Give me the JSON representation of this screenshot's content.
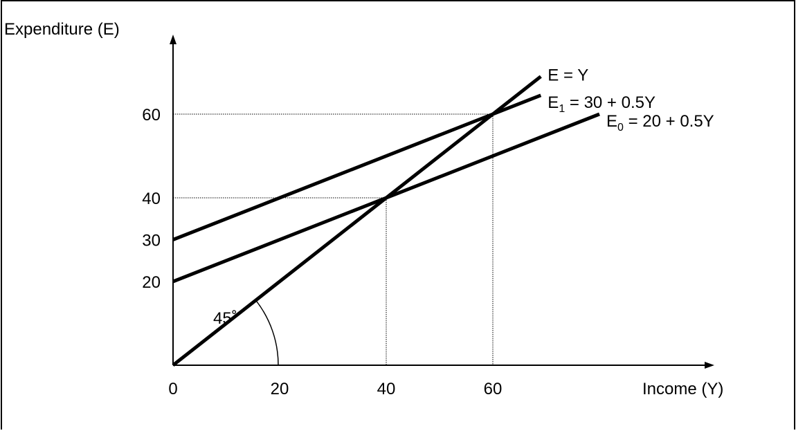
{
  "chart_data": {
    "type": "line",
    "xlabel": "Income (Y)",
    "ylabel": "Expenditure (E)",
    "x_ticks": [
      0,
      20,
      40,
      60
    ],
    "y_ticks": [
      20,
      30,
      40,
      60
    ],
    "xlim": [
      0,
      80
    ],
    "ylim": [
      0,
      80
    ],
    "grid": false,
    "series": [
      {
        "name": "E = Y",
        "intercept": 0,
        "slope": 1,
        "x": [
          0,
          69
        ],
        "y": [
          0,
          69
        ]
      },
      {
        "name": "E1 = 30 + 0.5Y",
        "label_base": "E",
        "label_sub": "1",
        "label_rest": " = 30 + 0.5Y",
        "intercept": 30,
        "slope": 0.5,
        "x": [
          0,
          69
        ],
        "y": [
          30,
          64.5
        ]
      },
      {
        "name": "E0 = 20 + 0.5Y",
        "label_base": "E",
        "label_sub": "0",
        "label_rest": " = 20 + 0.5Y",
        "intercept": 20,
        "slope": 0.5,
        "x": [
          0,
          80
        ],
        "y": [
          20,
          60
        ]
      }
    ],
    "equilibria": [
      {
        "x": 40,
        "y": 40
      },
      {
        "x": 60,
        "y": 60
      }
    ],
    "angle_label": "45˚",
    "line_color": "#000000"
  }
}
